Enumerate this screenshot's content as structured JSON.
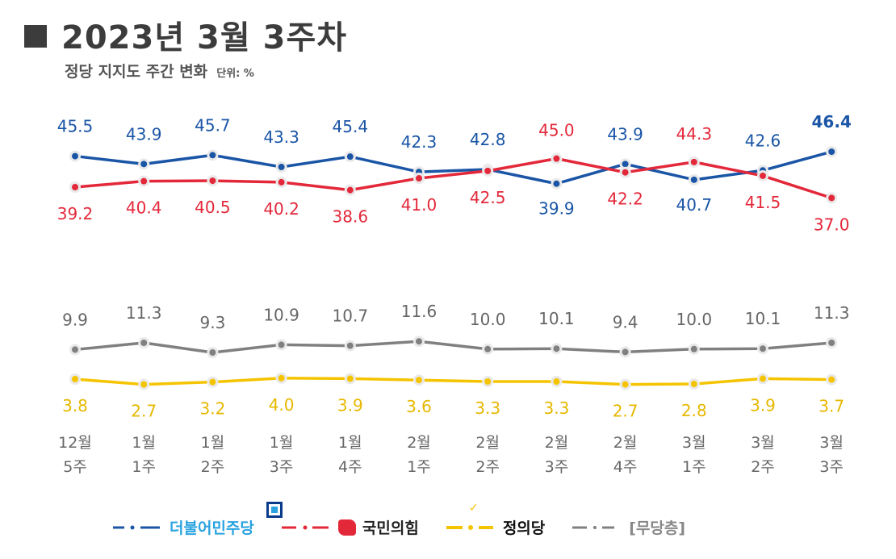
{
  "header": {
    "title": "2023년 3월 3주차",
    "subtitle": "정당 지지도 주간 변화",
    "unit": "단위: %"
  },
  "colors": {
    "minjoo": "#1a55a6",
    "ppp": "#e3283a",
    "justice": "#f5c400",
    "none": "#808080"
  },
  "chart_data": {
    "type": "line",
    "categories": [
      [
        "12월",
        "5주"
      ],
      [
        "1월",
        "1주"
      ],
      [
        "1월",
        "2주"
      ],
      [
        "1월",
        "3주"
      ],
      [
        "1월",
        "4주"
      ],
      [
        "2월",
        "1주"
      ],
      [
        "2월",
        "2주"
      ],
      [
        "2월",
        "3주"
      ],
      [
        "2월",
        "4주"
      ],
      [
        "3월",
        "1주"
      ],
      [
        "3월",
        "2주"
      ],
      [
        "3월",
        "3주"
      ]
    ],
    "series": [
      {
        "name": "더불어민주당",
        "color": "#1a55a6",
        "values": [
          45.5,
          43.9,
          45.7,
          43.3,
          45.4,
          42.3,
          42.8,
          39.9,
          43.9,
          40.7,
          42.6,
          46.4
        ],
        "labels": [
          "45.5",
          "43.9",
          "45.7",
          "43.3",
          "45.4",
          "42.3",
          "42.8",
          "39.9",
          "43.9",
          "40.7",
          "42.6",
          "46.4"
        ]
      },
      {
        "name": "국민의힘",
        "color": "#e3283a",
        "values": [
          39.2,
          40.4,
          40.5,
          40.2,
          38.6,
          41.0,
          42.5,
          45.0,
          42.2,
          44.3,
          41.5,
          37.0
        ],
        "labels": [
          "39.2",
          "40.4",
          "40.5",
          "40.2",
          "38.6",
          "41.0",
          "42.5",
          "45.0",
          "42.2",
          "44.3",
          "41.5",
          "37.0"
        ]
      },
      {
        "name": "[무당층]",
        "color": "#808080",
        "values": [
          9.9,
          11.3,
          9.3,
          10.9,
          10.7,
          11.6,
          10.0,
          10.1,
          9.4,
          10.0,
          10.1,
          11.3
        ],
        "labels": [
          "9.9",
          "11.3",
          "9.3",
          "10.9",
          "10.7",
          "11.6",
          "10.0",
          "10.1",
          "9.4",
          "10.0",
          "10.1",
          "11.3"
        ]
      },
      {
        "name": "정의당",
        "color": "#f5c400",
        "values": [
          3.8,
          2.7,
          3.2,
          4.0,
          3.9,
          3.6,
          3.3,
          3.3,
          2.7,
          2.8,
          3.9,
          3.7
        ],
        "labels": [
          "3.8",
          "2.7",
          "3.2",
          "4.0",
          "3.9",
          "3.6",
          "3.3",
          "3.3",
          "2.7",
          "2.8",
          "3.9",
          "3.7"
        ]
      }
    ]
  },
  "legend": {
    "minjoo": "더불어민주당",
    "ppp": "국민의힘",
    "justice": "정의당",
    "none": "[무당층]"
  }
}
